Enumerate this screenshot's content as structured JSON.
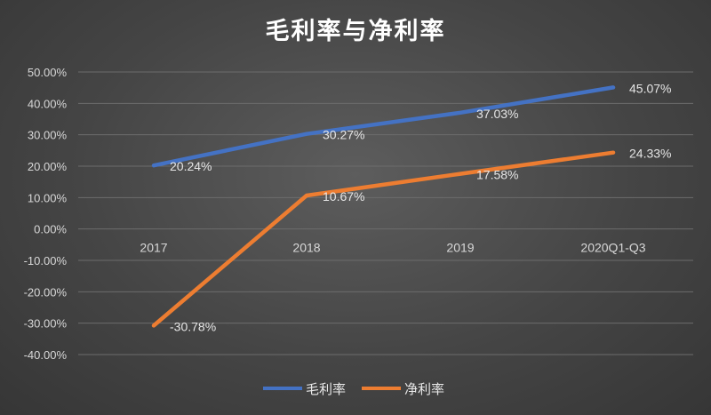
{
  "chart_data": {
    "type": "line",
    "title": "毛利率与净利率",
    "categories": [
      "2017",
      "2018",
      "2019",
      "2020Q1-Q3"
    ],
    "y_ticks": [
      "50.00%",
      "40.00%",
      "30.00%",
      "20.00%",
      "10.00%",
      "0.00%",
      "-10.00%",
      "-20.00%",
      "-30.00%",
      "-40.00%"
    ],
    "ylim": [
      -40,
      50
    ],
    "grid": true,
    "legend_position": "bottom",
    "series": [
      {
        "name": "毛利率",
        "color": "#4472c4",
        "values": [
          20.24,
          30.27,
          37.03,
          45.07
        ],
        "labels": [
          "20.24%",
          "30.27%",
          "37.03%",
          "45.07%"
        ]
      },
      {
        "name": "净利率",
        "color": "#ed7d31",
        "values": [
          -30.78,
          10.67,
          17.58,
          24.33
        ],
        "labels": [
          "-30.78%",
          "10.67%",
          "17.58%",
          "24.33%"
        ]
      }
    ]
  }
}
